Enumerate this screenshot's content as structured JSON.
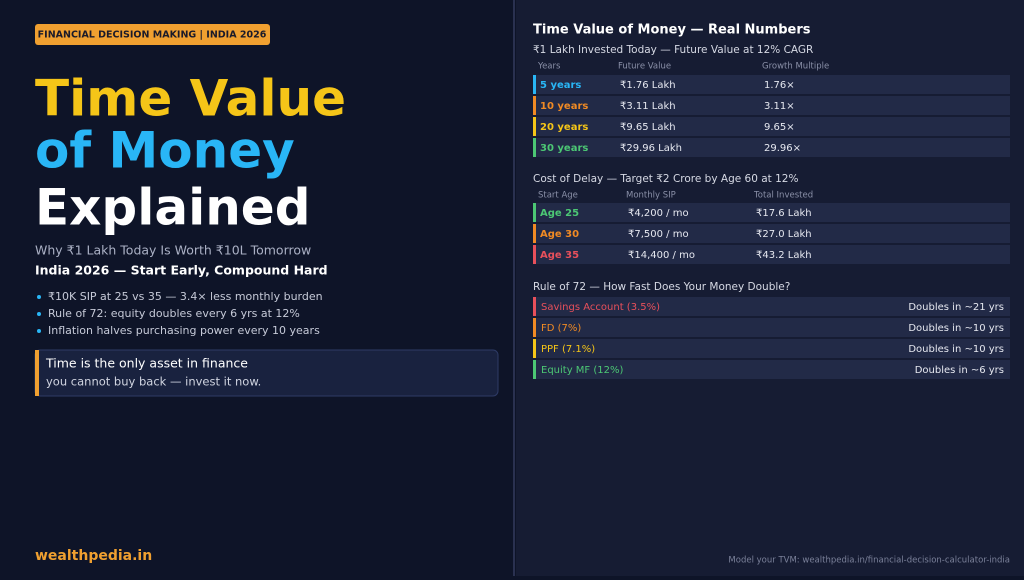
{
  "left": {
    "badge": "FINANCIAL DECISION MAKING | INDIA 2026",
    "title_lines": [
      "Time Value",
      "of Money",
      "Explained"
    ],
    "subtitle": "Why ₹1 Lakh Today Is Worth ₹10L Tomorrow",
    "tagline": "India 2026 — Start Early, Compound Hard",
    "bullets": [
      "₹10K SIP at 25 vs 35 — 3.4× less monthly burden",
      "Rule of 72: equity doubles every 6 yrs at 12%",
      "Inflation halves purchasing power every 10 years"
    ],
    "callout": [
      "Time is the only asset in finance",
      "you cannot buy back — invest it now."
    ],
    "brand": "wealthpedia.in"
  },
  "right": {
    "heading": "Time Value of Money — Real Numbers",
    "sections": [
      {
        "title": "₹1 Lakh Invested Today — Future Value at 12% CAGR",
        "columns": [
          "Years",
          "Future Value",
          "Growth Multiple"
        ],
        "rows": [
          [
            "5 years",
            "₹1.76 Lakh",
            "1.76×"
          ],
          [
            "10 years",
            "₹3.11 Lakh",
            "3.11×"
          ],
          [
            "20 years",
            "₹9.65 Lakh",
            "9.65×"
          ],
          [
            "30 years",
            "₹29.96 Lakh",
            "29.96×"
          ]
        ],
        "colors": [
          "#29b6f6",
          "#f08a24",
          "#f5c518",
          "#4cc774"
        ]
      },
      {
        "title": "Cost of Delay — Target ₹2 Crore by Age 60 at 12%",
        "columns": [
          "Start Age",
          "Monthly SIP",
          "Total Invested"
        ],
        "rows": [
          [
            "Age 25",
            "₹4,200 / mo",
            "₹17.6 Lakh"
          ],
          [
            "Age 30",
            "₹7,500 / mo",
            "₹27.0 Lakh"
          ],
          [
            "Age 35",
            "₹14,400 / mo",
            "₹43.2 Lakh"
          ]
        ],
        "colors": [
          "#4cc774",
          "#f08a24",
          "#e8505b"
        ]
      },
      {
        "title": "Rule of 72 — How Fast Does Your Money Double?",
        "rows": [
          [
            "Savings Account (3.5%)",
            "Doubles in ~21 yrs"
          ],
          [
            "FD (7%)",
            "Doubles in ~10 yrs"
          ],
          [
            "PPF (7.1%)",
            "Doubles in ~10 yrs"
          ],
          [
            "Equity MF (12%)",
            "Doubles in ~6 yrs"
          ]
        ],
        "colors": [
          "#e8505b",
          "#f08a24",
          "#f5c518",
          "#4cc774"
        ]
      }
    ],
    "footer": "Model your TVM: wealthpedia.in/financial-decision-calculator-india"
  }
}
